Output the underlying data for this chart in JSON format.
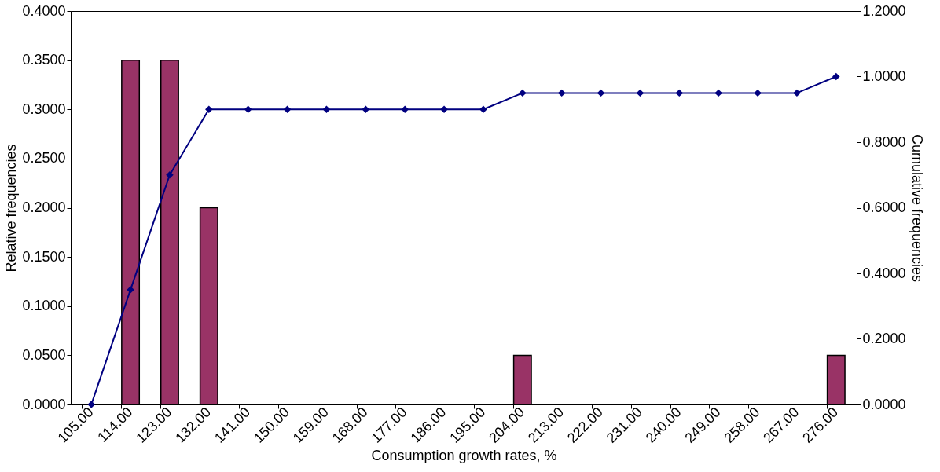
{
  "chart_data": {
    "type": "bar",
    "xlabel": "Consumption growth rates, %",
    "ylabel": "Relative frequencies",
    "y2label": "Cumulative frequencies",
    "categories": [
      "105.00",
      "114.00",
      "123.00",
      "132.00",
      "141.00",
      "150.00",
      "159.00",
      "168.00",
      "177.00",
      "186.00",
      "195.00",
      "204.00",
      "213.00",
      "222.00",
      "231.00",
      "240.00",
      "249.00",
      "258.00",
      "267.00",
      "276.00"
    ],
    "series": [
      {
        "color": "#993366",
        "values": [
          0,
          0.35,
          0.35,
          0.2,
          0,
          0,
          0,
          0,
          0,
          0,
          0,
          0.05,
          0,
          0,
          0,
          0,
          0,
          0,
          0,
          0.05
        ]
      },
      {
        "type": "line",
        "axis": "y2",
        "color": "#000080",
        "marker": "diamond",
        "values": [
          0,
          0.35,
          0.7,
          0.9,
          0.9,
          0.9,
          0.9,
          0.9,
          0.9,
          0.9,
          0.9,
          0.95,
          0.95,
          0.95,
          0.95,
          0.95,
          0.95,
          0.95,
          0.95,
          1.0
        ]
      }
    ],
    "ylim": [
      0,
      0.4
    ],
    "yticks": [
      {
        "value": 0,
        "label": "0.0000"
      },
      {
        "value": 0.05,
        "label": "0.0500"
      },
      {
        "value": 0.1,
        "label": "0.1000"
      },
      {
        "value": 0.15,
        "label": "0.1500"
      },
      {
        "value": 0.2,
        "label": "0.2000"
      },
      {
        "value": 0.25,
        "label": "0.2500"
      },
      {
        "value": 0.3,
        "label": "0.3000"
      },
      {
        "value": 0.35,
        "label": "0.3500"
      },
      {
        "value": 0.4,
        "label": "0.4000"
      }
    ],
    "y2lim": [
      0,
      1.2
    ],
    "y2ticks": [
      {
        "value": 0,
        "label": "0.0000"
      },
      {
        "value": 0.2,
        "label": "0.2000"
      },
      {
        "value": 0.4,
        "label": "0.4000"
      },
      {
        "value": 0.6,
        "label": "0.6000"
      },
      {
        "value": 0.8,
        "label": "0.8000"
      },
      {
        "value": 1.0,
        "label": "1.0000"
      },
      {
        "value": 1.2,
        "label": "1.2000"
      }
    ],
    "grid": false
  }
}
